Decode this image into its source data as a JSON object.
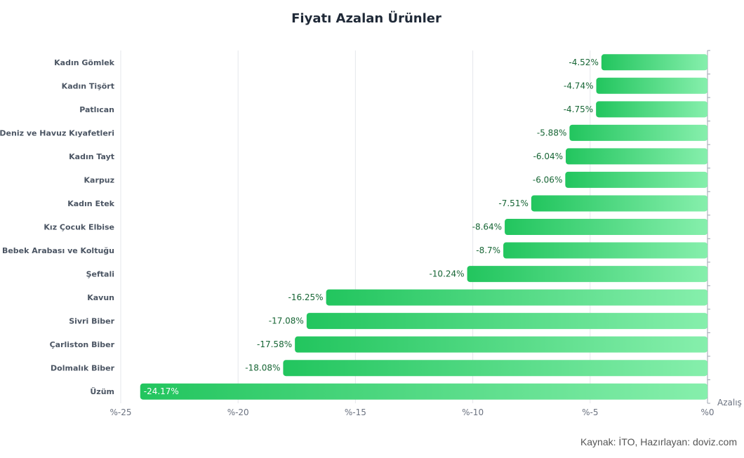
{
  "chart_data": {
    "type": "bar",
    "orientation": "horizontal",
    "title": "Fiyatı Azalan Ürünler",
    "xlabel": "Azalış",
    "ylabel": "",
    "xlim": [
      -25,
      0
    ],
    "x_ticks": [
      -25,
      -20,
      -15,
      -10,
      -5,
      0
    ],
    "x_tick_labels": [
      "%-25",
      "%-20",
      "%-15",
      "%-10",
      "%-5",
      "%0"
    ],
    "categories": [
      "Kadın Gömlek",
      "Kadın Tişört",
      "Patlıcan",
      "Deniz ve Havuz Kıyafetleri",
      "Kadın Tayt",
      "Karpuz",
      "Kadın Etek",
      "Kız Çocuk Elbise",
      "Bebek Arabası ve Koltuğu",
      "Şeftali",
      "Kavun",
      "Sivri Biber",
      "Çarliston Biber",
      "Dolmalık Biber",
      "Üzüm"
    ],
    "values": [
      -4.52,
      -4.74,
      -4.75,
      -5.88,
      -6.04,
      -6.06,
      -7.51,
      -8.64,
      -8.7,
      -10.24,
      -16.25,
      -17.08,
      -17.58,
      -18.08,
      -24.17
    ],
    "value_labels": [
      "-4.52%",
      "-4.74%",
      "-4.75%",
      "-5.88%",
      "-6.04%",
      "-6.06%",
      "-7.51%",
      "-8.64%",
      "-8.7%",
      "-10.24%",
      "-16.25%",
      "-17.08%",
      "-17.58%",
      "-18.08%",
      "-24.17%"
    ],
    "grid": true,
    "legend": "none",
    "colors": {
      "bar_start": "#22c55e",
      "bar_end": "#86efac",
      "grid": "#e5e7eb",
      "label": "#166534"
    }
  },
  "footer": {
    "source": "Kaynak: İTO, Hazırlayan: doviz.com"
  }
}
